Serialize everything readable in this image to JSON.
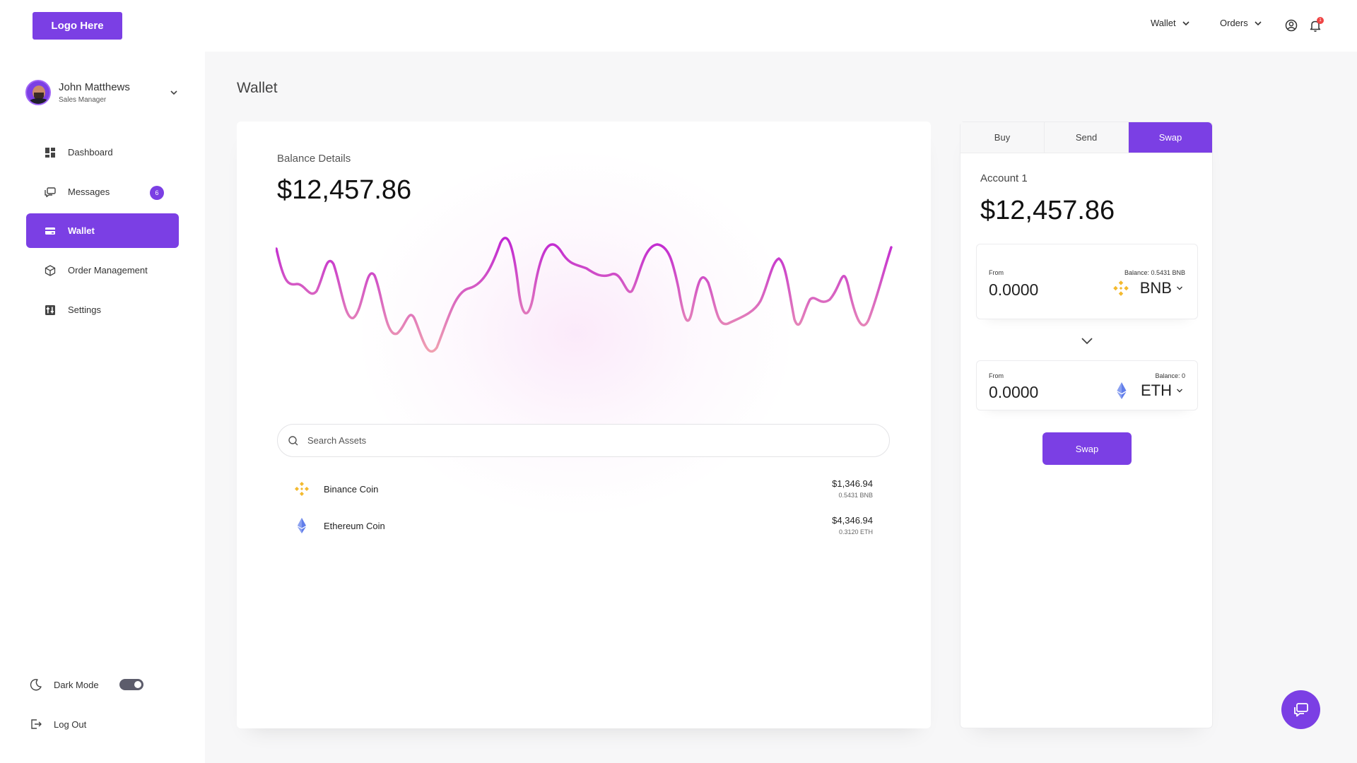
{
  "header": {
    "logo": "Logo Here",
    "nav": [
      {
        "label": "Wallet"
      },
      {
        "label": "Orders"
      }
    ],
    "notification_count": "1",
    "icons": [
      "user-circle-icon",
      "bell-icon"
    ]
  },
  "sidebar": {
    "user": {
      "name": "John Matthews",
      "role": "Sales Manager"
    },
    "items": [
      {
        "label": "Dashboard",
        "icon": "dashboard-icon"
      },
      {
        "label": "Messages",
        "icon": "messages-icon",
        "badge": "6"
      },
      {
        "label": "Wallet",
        "icon": "wallet-icon",
        "active": true
      },
      {
        "label": "Order Management",
        "icon": "box-icon"
      },
      {
        "label": "Settings",
        "icon": "settings-icon"
      }
    ],
    "dark_mode": {
      "label": "Dark Mode",
      "on": true
    },
    "logout": {
      "label": "Log Out"
    }
  },
  "main": {
    "title": "Wallet",
    "balance": {
      "label": "Balance Details",
      "amount": "$12,457.86"
    },
    "search": {
      "placeholder": "Search Assets",
      "value": ""
    },
    "assets": [
      {
        "name": "Binance Coin",
        "icon": "bnb-icon",
        "amount": "$1,346.94",
        "sub": "0.5431 BNB"
      },
      {
        "name": "Ethereum Coin",
        "icon": "eth-icon",
        "amount": "$4,346.94",
        "sub": "0.3120 ETH"
      }
    ],
    "colors": {
      "accent": "#7b3fe4",
      "line_start": "#f0a0b0",
      "line_end": "#c026d3"
    }
  },
  "swap": {
    "tabs": [
      {
        "label": "Buy"
      },
      {
        "label": "Send"
      },
      {
        "label": "Swap",
        "active": true
      }
    ],
    "account": {
      "label": "Account 1",
      "amount": "$12,457.86"
    },
    "from": {
      "label": "From",
      "value": "0.0000",
      "balance": "Balance: 0.5431 BNB",
      "coin": "BNB"
    },
    "to": {
      "label": "From",
      "value": "0.0000",
      "balance": "Balance: 0",
      "coin": "ETH"
    },
    "button": "Swap"
  }
}
